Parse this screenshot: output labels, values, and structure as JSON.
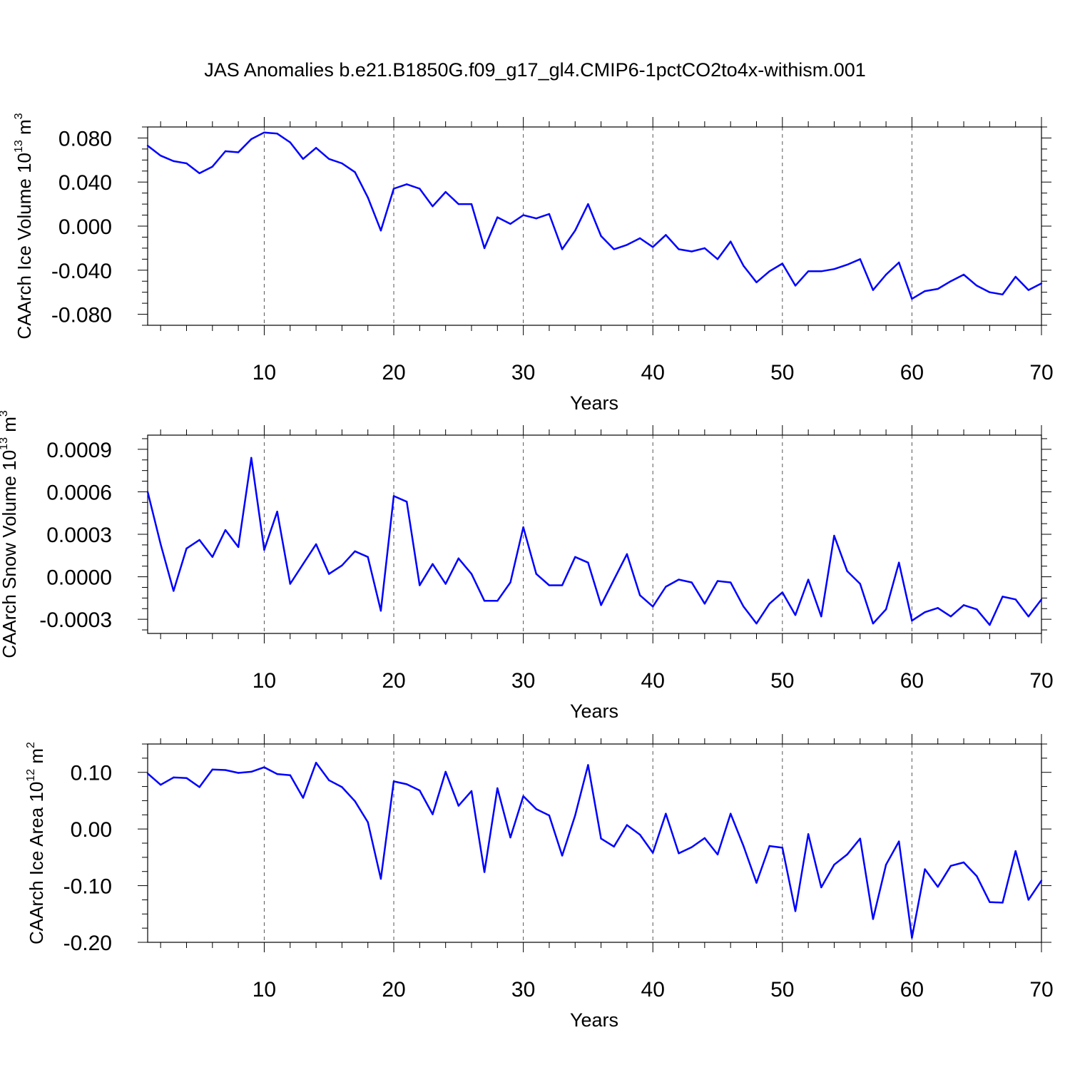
{
  "title": "JAS Anomalies b.e21.B1850G.f09_g17_gl4.CMIP6-1pctCO2to4x-withism.001",
  "series_color": "#0000ff",
  "chart_data": [
    {
      "type": "line",
      "name": "ice-volume",
      "ylabel_main": "CAArch Ice Volume 10",
      "ylabel_exp": "13",
      "ylabel_unit": " m",
      "ylabel_unit_exp": "3",
      "xlabel": "Years",
      "xlim": [
        1,
        70
      ],
      "ylim": [
        -0.09,
        0.09
      ],
      "yticks": [
        0.08,
        0.04,
        0.0,
        -0.04,
        -0.08
      ],
      "ytick_labels": [
        "0.080",
        "0.040",
        "0.000",
        "-0.040",
        "-0.080"
      ],
      "xticks": [
        10,
        20,
        30,
        40,
        50,
        60,
        70
      ],
      "xtick_labels": [
        "10",
        "20",
        "30",
        "40",
        "50",
        "60",
        "70"
      ],
      "dashed_x": [
        10,
        20,
        30,
        40,
        50,
        60
      ],
      "values": [
        0.073,
        0.064,
        0.059,
        0.057,
        0.048,
        0.054,
        0.068,
        0.067,
        0.079,
        0.085,
        0.084,
        0.076,
        0.061,
        0.071,
        0.061,
        0.057,
        0.049,
        0.026,
        -0.004,
        0.034,
        0.038,
        0.034,
        0.018,
        0.031,
        0.02,
        0.02,
        -0.02,
        0.008,
        0.002,
        0.01,
        0.007,
        0.011,
        -0.021,
        -0.004,
        0.02,
        -0.009,
        -0.021,
        -0.017,
        -0.011,
        -0.019,
        -0.008,
        -0.021,
        -0.023,
        -0.02,
        -0.03,
        -0.014,
        -0.036,
        -0.051,
        -0.041,
        -0.034,
        -0.054,
        -0.041,
        -0.041,
        -0.039,
        -0.035,
        -0.03,
        -0.058,
        -0.044,
        -0.033,
        -0.066,
        -0.059,
        -0.057,
        -0.05,
        -0.044,
        -0.054,
        -0.06,
        -0.062,
        -0.046,
        -0.058,
        -0.052
      ]
    },
    {
      "type": "line",
      "name": "snow-volume",
      "ylabel_main": "CAArch Snow Volume 10",
      "ylabel_exp": "13",
      "ylabel_unit": " m",
      "ylabel_unit_exp": "3",
      "xlabel": "Years",
      "xlim": [
        1,
        70
      ],
      "ylim": [
        -0.0004,
        0.001
      ],
      "yticks": [
        0.0009,
        0.0006,
        0.0003,
        0.0,
        -0.0003
      ],
      "ytick_labels": [
        "0.0009",
        "0.0006",
        "0.0003",
        "0.0000",
        "-0.0003"
      ],
      "xticks": [
        10,
        20,
        30,
        40,
        50,
        60,
        70
      ],
      "xtick_labels": [
        "10",
        "20",
        "30",
        "40",
        "50",
        "60",
        "70"
      ],
      "dashed_x": [
        10,
        20,
        30,
        40,
        50,
        60
      ],
      "values": [
        0.0006,
        0.00023,
        -0.0001,
        0.0002,
        0.00026,
        0.00014,
        0.00033,
        0.00021,
        0.00084,
        0.00019,
        0.00046,
        -5e-05,
        9e-05,
        0.00023,
        2e-05,
        8e-05,
        0.00018,
        0.00014,
        -0.00024,
        0.00057,
        0.00053,
        -6e-05,
        9e-05,
        -5e-05,
        0.00013,
        2e-05,
        -0.00017,
        -0.00017,
        -4e-05,
        0.00035,
        2e-05,
        -6e-05,
        -6e-05,
        0.00014,
        0.0001,
        -0.0002,
        -2e-05,
        0.00016,
        -0.00013,
        -0.00021,
        -7e-05,
        -2e-05,
        -4e-05,
        -0.00019,
        -3e-05,
        -4e-05,
        -0.00021,
        -0.00033,
        -0.00019,
        -0.00011,
        -0.00027,
        -2e-05,
        -0.00028,
        0.00029,
        4e-05,
        -5e-05,
        -0.00033,
        -0.00023,
        0.0001,
        -0.00031,
        -0.00025,
        -0.00022,
        -0.00028,
        -0.0002,
        -0.00023,
        -0.00034,
        -0.00014,
        -0.00016,
        -0.00028,
        -0.00016
      ]
    },
    {
      "type": "line",
      "name": "ice-area",
      "ylabel_main": "CAArch Ice Area 10",
      "ylabel_exp": "12",
      "ylabel_unit": " m",
      "ylabel_unit_exp": "2",
      "xlabel": "Years",
      "xlim": [
        1,
        70
      ],
      "ylim": [
        -0.2,
        0.15
      ],
      "yticks": [
        0.1,
        0.0,
        -0.1,
        -0.2
      ],
      "ytick_labels": [
        "0.10",
        "0.00",
        "-0.10",
        "-0.20"
      ],
      "xticks": [
        10,
        20,
        30,
        40,
        50,
        60,
        70
      ],
      "xtick_labels": [
        "10",
        "20",
        "30",
        "40",
        "50",
        "60",
        "70"
      ],
      "dashed_x": [
        10,
        20,
        30,
        40,
        50,
        60
      ],
      "values": [
        0.098,
        0.078,
        0.091,
        0.09,
        0.074,
        0.105,
        0.104,
        0.099,
        0.101,
        0.109,
        0.097,
        0.095,
        0.055,
        0.117,
        0.086,
        0.074,
        0.049,
        0.012,
        -0.088,
        0.084,
        0.079,
        0.068,
        0.026,
        0.101,
        0.041,
        0.067,
        -0.076,
        0.072,
        -0.015,
        0.058,
        0.035,
        0.024,
        -0.047,
        0.024,
        0.113,
        -0.017,
        -0.031,
        0.007,
        -0.01,
        -0.042,
        0.027,
        -0.043,
        -0.032,
        -0.016,
        -0.045,
        0.027,
        -0.03,
        -0.095,
        -0.03,
        -0.033,
        -0.145,
        -0.009,
        -0.103,
        -0.063,
        -0.045,
        -0.017,
        -0.159,
        -0.063,
        -0.022,
        -0.192,
        -0.071,
        -0.102,
        -0.065,
        -0.059,
        -0.083,
        -0.129,
        -0.13,
        -0.039,
        -0.125,
        -0.091
      ]
    }
  ]
}
